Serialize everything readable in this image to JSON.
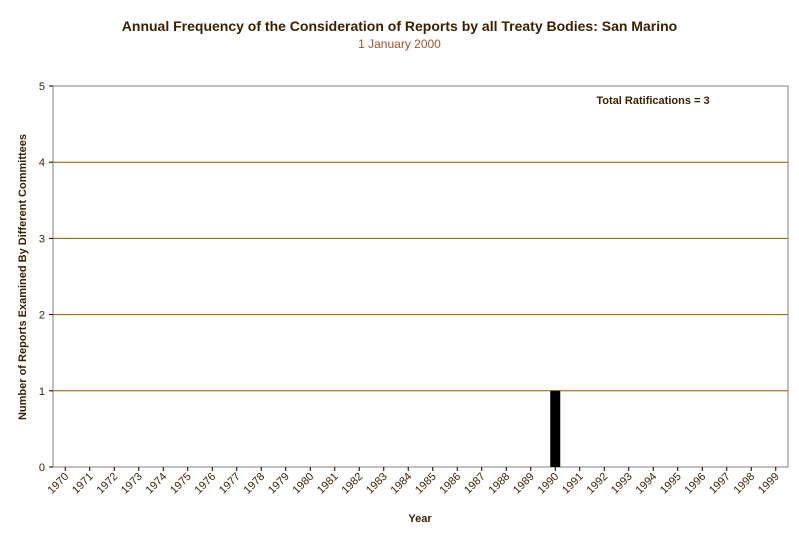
{
  "chart_data": {
    "type": "bar",
    "title": "Annual Frequency of the Consideration of Reports by all Treaty Bodies: San Marino",
    "subtitle": "1 January 2000",
    "xlabel": "Year",
    "ylabel": "Number of Reports Examined By Different Committees",
    "categories": [
      "1970",
      "1971",
      "1972",
      "1973",
      "1974",
      "1975",
      "1976",
      "1977",
      "1978",
      "1979",
      "1980",
      "1981",
      "1982",
      "1983",
      "1984",
      "1985",
      "1986",
      "1987",
      "1988",
      "1989",
      "1990",
      "1991",
      "1992",
      "1993",
      "1994",
      "1995",
      "1996",
      "1997",
      "1998",
      "1999"
    ],
    "values": [
      0,
      0,
      0,
      0,
      0,
      0,
      0,
      0,
      0,
      0,
      0,
      0,
      0,
      0,
      0,
      0,
      0,
      0,
      0,
      0,
      1,
      0,
      0,
      0,
      0,
      0,
      0,
      0,
      0,
      0
    ],
    "ylim": [
      0,
      5
    ],
    "yticks": [
      "0",
      "1",
      "2",
      "3",
      "4",
      "5"
    ],
    "grid": true,
    "annotation": "Total Ratifications = 3",
    "colors": {
      "bar": "#000000",
      "gridline": "#8b5a00",
      "text": "#3b1f00",
      "subtitle": "#a0522d"
    }
  }
}
